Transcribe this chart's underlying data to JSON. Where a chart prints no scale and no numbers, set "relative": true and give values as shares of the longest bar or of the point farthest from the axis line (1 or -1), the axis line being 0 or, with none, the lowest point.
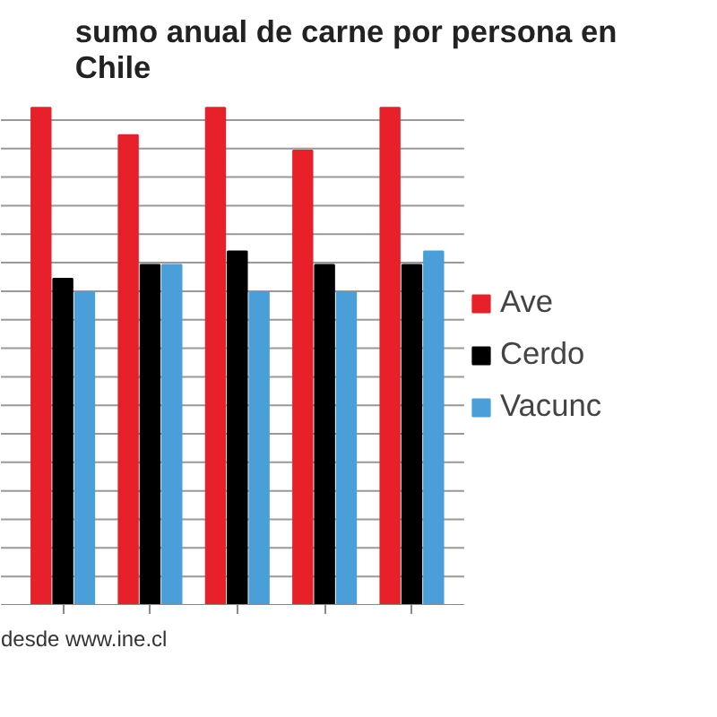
{
  "chart_data": {
    "type": "bar",
    "title": "sumo anual de carne por persona en\nChile",
    "relative": true,
    "categories": [
      null,
      null,
      null,
      null,
      null
    ],
    "series": [
      {
        "name": "Ave",
        "color": "#e8202a",
        "values": [
          1.0,
          0.945,
          1.0,
          0.914,
          1.0
        ]
      },
      {
        "name": "Cerdo",
        "color": "#000000",
        "values": [
          0.656,
          0.684,
          0.711,
          0.684,
          0.684
        ]
      },
      {
        "name": "Vacunc",
        "color": "#4a9fd8",
        "values": [
          0.629,
          0.684,
          0.629,
          0.629,
          0.711
        ]
      }
    ],
    "grid": "y",
    "legend": "right",
    "annotations": [
      "desde www.ine.cl"
    ]
  }
}
